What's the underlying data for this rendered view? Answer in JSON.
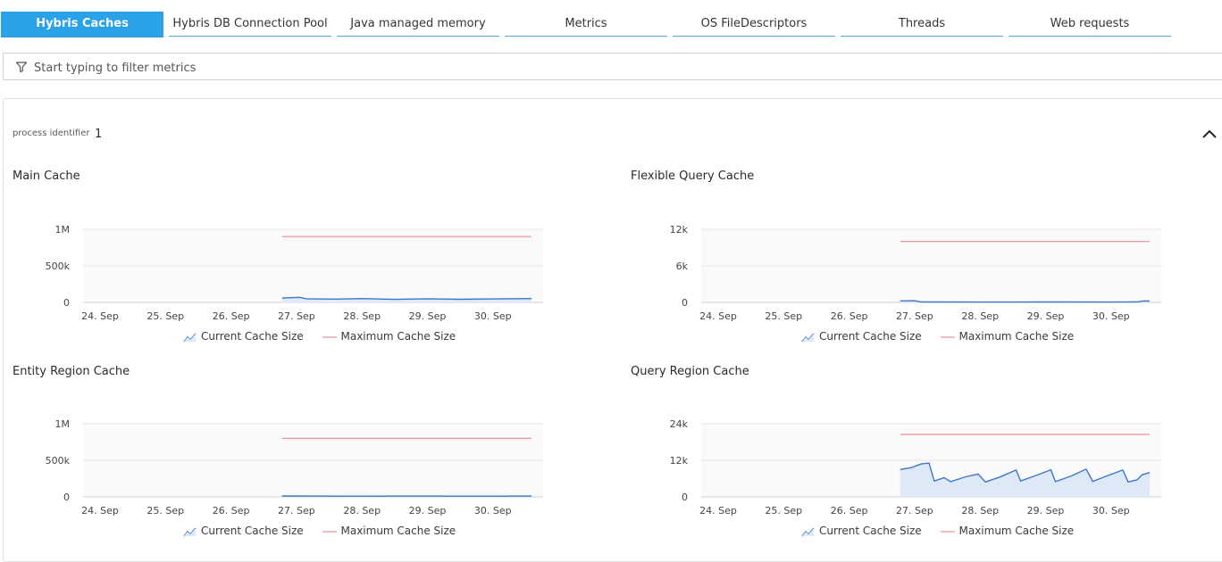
{
  "tabs": [
    {
      "label": "Hybris Caches",
      "active": true
    },
    {
      "label": "Hybris DB Connection Pool",
      "active": false
    },
    {
      "label": "Java managed memory",
      "active": false
    },
    {
      "label": "Metrics",
      "active": false
    },
    {
      "label": "OS FileDescriptors",
      "active": false
    },
    {
      "label": "Threads",
      "active": false
    },
    {
      "label": "Web requests",
      "active": false
    }
  ],
  "filter": {
    "placeholder": "Start typing to filter metrics",
    "value": ""
  },
  "group": {
    "label": "process identifier",
    "value": "1"
  },
  "colors": {
    "accent": "#2ba1e8",
    "current_series": "#3c78c8",
    "current_fill": "#dde9f6",
    "max_series": "#ef8c94"
  },
  "legend": {
    "current": "Current Cache Size",
    "maximum": "Maximum Cache Size"
  },
  "charts": [
    {
      "title": "Main Cache",
      "chart_data": {
        "type": "area",
        "x": [
          "24. Sep",
          "25. Sep",
          "26. Sep",
          "27. Sep",
          "28. Sep",
          "29. Sep",
          "30. Sep"
        ],
        "yticks": [
          "0",
          "500k",
          "1M"
        ],
        "ylim": [
          0,
          1000000
        ],
        "series": [
          {
            "name": "Current Cache Size",
            "points": [
              [
                2.78,
                60000
              ],
              [
                3.05,
                70000
              ],
              [
                3.15,
                50000
              ],
              [
                3.6,
                45000
              ],
              [
                4.0,
                52000
              ],
              [
                4.5,
                42000
              ],
              [
                5.0,
                50000
              ],
              [
                5.5,
                43000
              ],
              [
                6.0,
                48000
              ],
              [
                6.59,
                52000
              ]
            ]
          },
          {
            "name": "Maximum Cache Size",
            "points": [
              [
                2.78,
                900000
              ],
              [
                6.59,
                900000
              ]
            ]
          }
        ]
      }
    },
    {
      "title": "Flexible Query Cache",
      "chart_data": {
        "type": "area",
        "x": [
          "24. Sep",
          "25. Sep",
          "26. Sep",
          "27. Sep",
          "28. Sep",
          "29. Sep",
          "30. Sep"
        ],
        "yticks": [
          "0",
          "6k",
          "12k"
        ],
        "ylim": [
          0,
          12000
        ],
        "series": [
          {
            "name": "Current Cache Size",
            "points": [
              [
                2.78,
                250
              ],
              [
                3.0,
                280
              ],
              [
                3.1,
                80
              ],
              [
                4.0,
                60
              ],
              [
                5.0,
                70
              ],
              [
                6.0,
                60
              ],
              [
                6.4,
                90
              ],
              [
                6.5,
                250
              ],
              [
                6.59,
                220
              ]
            ]
          },
          {
            "name": "Maximum Cache Size",
            "points": [
              [
                2.78,
                10000
              ],
              [
                6.59,
                10000
              ]
            ]
          }
        ]
      }
    },
    {
      "title": "Entity Region Cache",
      "chart_data": {
        "type": "area",
        "x": [
          "24. Sep",
          "25. Sep",
          "26. Sep",
          "27. Sep",
          "28. Sep",
          "29. Sep",
          "30. Sep"
        ],
        "yticks": [
          "0",
          "500k",
          "1M"
        ],
        "ylim": [
          0,
          1000000
        ],
        "series": [
          {
            "name": "Current Cache Size",
            "points": [
              [
                2.78,
                12000
              ],
              [
                4.0,
                10000
              ],
              [
                5.0,
                11000
              ],
              [
                6.0,
                10000
              ],
              [
                6.59,
                11000
              ]
            ]
          },
          {
            "name": "Maximum Cache Size",
            "points": [
              [
                2.78,
                800000
              ],
              [
                6.59,
                800000
              ]
            ]
          }
        ]
      }
    },
    {
      "title": "Query Region Cache",
      "chart_data": {
        "type": "area",
        "x": [
          "24. Sep",
          "25. Sep",
          "26. Sep",
          "27. Sep",
          "28. Sep",
          "29. Sep",
          "30. Sep"
        ],
        "yticks": [
          "0",
          "12k",
          "24k"
        ],
        "ylim": [
          0,
          24000
        ],
        "series": [
          {
            "name": "Current Cache Size",
            "points": [
              [
                2.78,
                9000
              ],
              [
                2.95,
                9600
              ],
              [
                3.1,
                10800
              ],
              [
                3.22,
                11100
              ],
              [
                3.3,
                5200
              ],
              [
                3.45,
                6300
              ],
              [
                3.55,
                5000
              ],
              [
                3.78,
                6600
              ],
              [
                3.97,
                7500
              ],
              [
                4.08,
                4900
              ],
              [
                4.3,
                6500
              ],
              [
                4.55,
                8800
              ],
              [
                4.62,
                5200
              ],
              [
                4.85,
                7000
              ],
              [
                5.08,
                8900
              ],
              [
                5.15,
                5000
              ],
              [
                5.4,
                6900
              ],
              [
                5.62,
                9100
              ],
              [
                5.72,
                5100
              ],
              [
                5.95,
                7000
              ],
              [
                6.18,
                8800
              ],
              [
                6.26,
                4900
              ],
              [
                6.4,
                5600
              ],
              [
                6.47,
                7200
              ],
              [
                6.59,
                8000
              ]
            ]
          },
          {
            "name": "Maximum Cache Size",
            "points": [
              [
                2.78,
                20500
              ],
              [
                6.59,
                20500
              ]
            ]
          }
        ]
      }
    }
  ]
}
